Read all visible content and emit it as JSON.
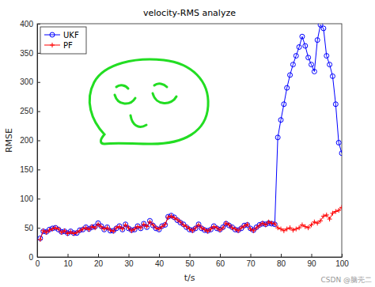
{
  "chart_data": {
    "type": "line",
    "title": "velocity-RMS analyze",
    "x_label": "t/s",
    "y_label": "RMSE",
    "annotations": [
      "CSDN @脑壳二"
    ],
    "x": [
      1,
      2,
      3,
      4,
      5,
      6,
      7,
      8,
      9,
      10,
      11,
      12,
      13,
      14,
      15,
      16,
      17,
      18,
      19,
      20,
      21,
      22,
      23,
      24,
      25,
      26,
      27,
      28,
      29,
      30,
      31,
      32,
      33,
      34,
      35,
      36,
      37,
      38,
      39,
      40,
      41,
      42,
      43,
      44,
      45,
      46,
      47,
      48,
      49,
      50,
      51,
      52,
      53,
      54,
      55,
      56,
      57,
      58,
      59,
      60,
      61,
      62,
      63,
      64,
      65,
      66,
      67,
      68,
      69,
      70,
      71,
      72,
      73,
      74,
      75,
      76,
      77,
      78,
      79,
      80,
      81,
      82,
      83,
      84,
      85,
      86,
      87,
      88,
      89,
      90,
      91,
      92,
      93,
      94,
      95,
      96,
      97,
      98,
      99,
      100
    ],
    "series": [
      {
        "name": "UKF",
        "color": "#0000ff",
        "marker": "circle",
        "line_style": "solid",
        "values": [
          32,
          44,
          43,
          47,
          49,
          50,
          47,
          43,
          44,
          41,
          44,
          41,
          41,
          46,
          47,
          51,
          48,
          51,
          52,
          58,
          53,
          47,
          51,
          45,
          45,
          49,
          53,
          47,
          56,
          49,
          46,
          47,
          53,
          49,
          57,
          51,
          62,
          54,
          49,
          47,
          53,
          55,
          69,
          71,
          68,
          63,
          59,
          56,
          51,
          47,
          46,
          49,
          56,
          49,
          46,
          45,
          47,
          53,
          49,
          47,
          51,
          57,
          54,
          51,
          47,
          46,
          49,
          54,
          55,
          49,
          46,
          51,
          55,
          57,
          56,
          58,
          57,
          56,
          205,
          235,
          262,
          290,
          312,
          330,
          345,
          360,
          378,
          362,
          342,
          330,
          318,
          372,
          398,
          392,
          345,
          330,
          310,
          262,
          196,
          178
        ]
      },
      {
        "name": "PF",
        "color": "#ff0000",
        "marker": "plus",
        "line_style": "solid",
        "values": [
          30,
          45,
          42,
          46,
          48,
          50,
          48,
          42,
          45,
          40,
          43,
          40,
          42,
          45,
          48,
          50,
          47,
          52,
          50,
          56,
          52,
          48,
          50,
          46,
          44,
          50,
          52,
          48,
          55,
          50,
          45,
          48,
          52,
          50,
          56,
          52,
          60,
          55,
          50,
          48,
          52,
          56,
          68,
          70,
          67,
          64,
          60,
          55,
          52,
          48,
          45,
          50,
          55,
          50,
          47,
          44,
          48,
          52,
          50,
          46,
          50,
          58,
          55,
          50,
          48,
          45,
          50,
          53,
          56,
          48,
          45,
          50,
          54,
          58,
          55,
          60,
          58,
          57,
          50,
          48,
          45,
          48,
          50,
          46,
          48,
          50,
          55,
          52,
          50,
          55,
          60,
          58,
          62,
          70,
          72,
          65,
          75,
          78,
          80,
          85
        ]
      }
    ],
    "xlim": [
      0,
      100
    ],
    "xticks": [
      0,
      10,
      20,
      30,
      40,
      50,
      60,
      70,
      80,
      90,
      100
    ],
    "ylim": [
      0,
      400
    ],
    "yticks": [
      0,
      50,
      100,
      150,
      200,
      250,
      300,
      350,
      400
    ],
    "grid": false,
    "legend": "top-left"
  }
}
